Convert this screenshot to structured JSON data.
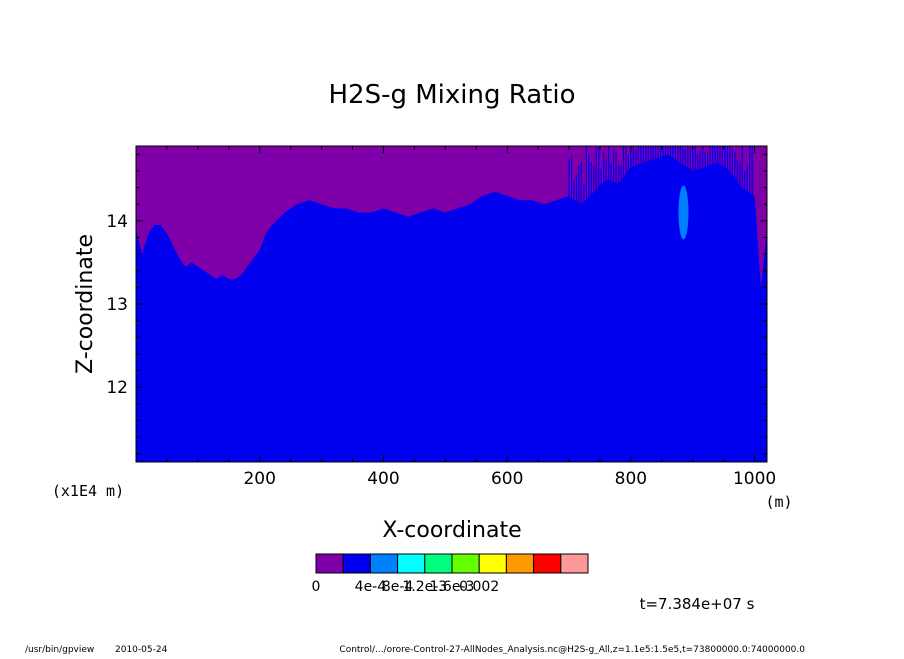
{
  "chart_data": {
    "type": "heatmap",
    "title": "H2S-g Mixing Ratio",
    "xlabel": "X-coordinate",
    "ylabel": "Z-coordinate",
    "x_unit": "(m)",
    "y_unit": "(x1E4 m)",
    "xlim": [
      0,
      1020
    ],
    "ylim": [
      11.1,
      14.9
    ],
    "x_ticks": [
      "200",
      "400",
      "600",
      "800",
      "1000"
    ],
    "x_tick_values": [
      200,
      400,
      600,
      800,
      1000
    ],
    "y_ticks": [
      "12",
      "13",
      "14"
    ],
    "y_tick_values": [
      12,
      13,
      14
    ],
    "levels": [
      {
        "label": "0",
        "color": "#7f00a8"
      },
      {
        "label": "",
        "color": "#0000ee"
      },
      {
        "label": "4e-4",
        "color": "#0080ff"
      },
      {
        "label": "8e-4",
        "color": "#00ffff"
      },
      {
        "label": "1.2e-3",
        "color": "#00ff80"
      },
      {
        "label": "1.6e-3",
        "color": "#66ff00"
      },
      {
        "label": "0.002",
        "color": "#ffff00"
      },
      {
        "label": "",
        "color": "#ff9900"
      },
      {
        "label": "",
        "color": "#ff0000"
      },
      {
        "label": "",
        "color": "#ff9999"
      }
    ],
    "level_labels": [
      "0",
      "4e-4",
      "8e-4",
      "1.2e-3",
      "1.6e-3",
      "0.002"
    ],
    "colors": [
      "#7f00a8",
      "#0000ee",
      "#0080ff",
      "#00ffff",
      "#00ff80",
      "#66ff00",
      "#ffff00",
      "#ff9900",
      "#ff0000",
      "#ff9999"
    ],
    "boundary_x": [
      0,
      10,
      20,
      30,
      40,
      50,
      60,
      70,
      80,
      90,
      100,
      110,
      120,
      130,
      140,
      150,
      160,
      170,
      180,
      190,
      200,
      210,
      220,
      240,
      260,
      280,
      300,
      320,
      340,
      360,
      380,
      400,
      420,
      440,
      460,
      480,
      500,
      520,
      540,
      560,
      580,
      600,
      620,
      640,
      660,
      680,
      700,
      720,
      740,
      760,
      780,
      800,
      820,
      840,
      860,
      880,
      900,
      920,
      940,
      960,
      980,
      1000,
      1010,
      1020
    ],
    "boundary_z": [
      13.9,
      13.6,
      13.85,
      13.95,
      13.95,
      13.85,
      13.7,
      13.55,
      13.45,
      13.5,
      13.45,
      13.4,
      13.35,
      13.3,
      13.35,
      13.3,
      13.3,
      13.35,
      13.45,
      13.55,
      13.65,
      13.85,
      13.95,
      14.1,
      14.2,
      14.25,
      14.2,
      14.15,
      14.15,
      14.1,
      14.1,
      14.15,
      14.1,
      14.05,
      14.1,
      14.15,
      14.1,
      14.15,
      14.2,
      14.3,
      14.35,
      14.3,
      14.25,
      14.25,
      14.2,
      14.25,
      14.3,
      14.2,
      14.35,
      14.5,
      14.45,
      14.65,
      14.7,
      14.75,
      14.8,
      14.7,
      14.6,
      14.65,
      14.7,
      14.6,
      14.4,
      14.3,
      13.2,
      13.9
    ],
    "blob": {
      "x": 885,
      "z": 14.1,
      "level": "4e-4"
    }
  },
  "footer": {
    "time_label": "t=7.384e+07 s",
    "program": "/usr/bin/gpview",
    "date": "2010-05-24",
    "source": "Control/.../orore-Control-27-AllNodes_Analysis.nc@H2S-g_All,z=1.1e5:1.5e5,t=73800000.0:74000000.0"
  }
}
